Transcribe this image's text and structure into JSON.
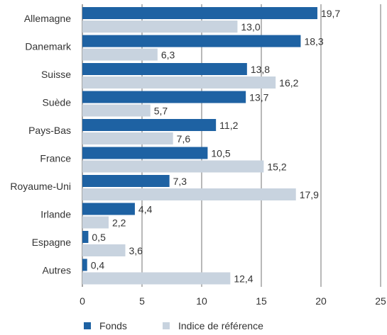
{
  "chart_data": {
    "type": "bar",
    "orientation": "horizontal",
    "categories": [
      "Allemagne",
      "Danemark",
      "Suisse",
      "Suède",
      "Pays-Bas",
      "France",
      "Royaume-Uni",
      "Irlande",
      "Espagne",
      "Autres"
    ],
    "series": [
      {
        "name": "Fonds",
        "color": "#1e62a3",
        "values": [
          19.7,
          18.3,
          13.8,
          13.7,
          11.2,
          10.5,
          7.3,
          4.4,
          0.5,
          0.4
        ],
        "labels": [
          "19,7",
          "18,3",
          "13,8",
          "13,7",
          "11,2",
          "10,5",
          "7,3",
          "4,4",
          "0,5",
          "0,4"
        ]
      },
      {
        "name": "Indice de référence",
        "color": "#c8d3df",
        "values": [
          13.0,
          6.3,
          16.2,
          5.7,
          7.6,
          15.2,
          17.9,
          2.2,
          3.6,
          12.4
        ],
        "labels": [
          "13,0",
          "6,3",
          "16,2",
          "5,7",
          "7,6",
          "15,2",
          "17,9",
          "2,2",
          "3,6",
          "12,4"
        ]
      }
    ],
    "xlim": [
      0,
      25
    ],
    "xticks": [
      0,
      5,
      10,
      15,
      20,
      25
    ],
    "xtick_labels": [
      "0",
      "5",
      "10",
      "15",
      "20",
      "25"
    ],
    "grid": "vertical",
    "legend_position": "bottom"
  },
  "legend": {
    "fonds_label": "Fonds",
    "indice_label": "Indice de référence",
    "fonds_color": "#1e62a3",
    "indice_color": "#c8d3df"
  }
}
